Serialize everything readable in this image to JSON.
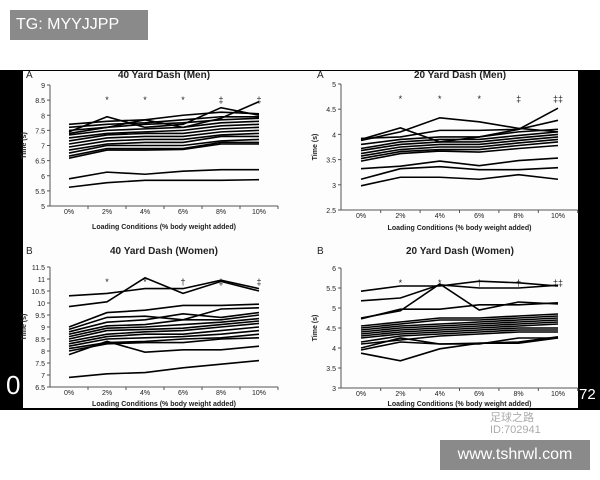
{
  "overlay": {
    "tag": "TG: MYYJJPP",
    "site": "www.tshrwl.com",
    "corner_left": "0",
    "watermark_name": "足球之路",
    "watermark_id": "ID:702941",
    "watermark_tail": "72"
  },
  "chart_data": [
    {
      "type": "line",
      "panel": "A",
      "title": "40 Yard Dash (Men)",
      "xlabel": "Loading Conditions (% body weight added)",
      "ylabel": "Time (s)",
      "categories": [
        "0%",
        "2%",
        "4%",
        "6%",
        "8%",
        "10%"
      ],
      "ylim": [
        5,
        9
      ],
      "yticks": [
        5,
        5.5,
        6,
        6.5,
        7,
        7.5,
        8,
        8.5,
        9
      ],
      "annotations": [
        "",
        "*",
        "*",
        "*",
        "‡",
        "‡"
      ],
      "series": [
        [
          7.45,
          7.95,
          7.6,
          7.7,
          8.25,
          8.0
        ],
        [
          7.4,
          7.6,
          7.85,
          7.6,
          7.9,
          8.45
        ],
        [
          7.7,
          7.8,
          7.85,
          8.0,
          8.1,
          8.05
        ],
        [
          7.6,
          7.7,
          7.75,
          7.85,
          7.95,
          7.95
        ],
        [
          7.5,
          7.6,
          7.7,
          7.75,
          7.85,
          7.9
        ],
        [
          7.35,
          7.5,
          7.55,
          7.6,
          7.75,
          7.8
        ],
        [
          7.25,
          7.4,
          7.45,
          7.5,
          7.65,
          7.7
        ],
        [
          7.15,
          7.35,
          7.4,
          7.4,
          7.55,
          7.6
        ],
        [
          7.05,
          7.25,
          7.3,
          7.3,
          7.45,
          7.5
        ],
        [
          6.95,
          7.15,
          7.2,
          7.2,
          7.35,
          7.4
        ],
        [
          6.85,
          7.05,
          7.1,
          7.1,
          7.3,
          7.3
        ],
        [
          6.75,
          7.0,
          7.0,
          7.0,
          7.15,
          7.2
        ],
        [
          6.65,
          6.9,
          6.9,
          6.9,
          7.1,
          7.1
        ],
        [
          6.58,
          6.85,
          6.85,
          6.87,
          7.05,
          7.05
        ],
        [
          5.9,
          6.12,
          6.05,
          6.15,
          6.2,
          6.2
        ],
        [
          5.62,
          5.77,
          5.85,
          5.85,
          5.85,
          5.87
        ]
      ]
    },
    {
      "type": "line",
      "panel": "A",
      "title": "20 Yard Dash (Men)",
      "xlabel": "Loading Conditions (% body weight added)",
      "ylabel": "Time (s)",
      "categories": [
        "0%",
        "2%",
        "4%",
        "6%",
        "8%",
        "10%"
      ],
      "ylim": [
        2.5,
        5
      ],
      "yticks": [
        2.5,
        3,
        3.5,
        4,
        4.5,
        5
      ],
      "annotations": [
        "",
        "*",
        "*",
        "*",
        "‡",
        "‡‡"
      ],
      "series": [
        [
          3.9,
          4.13,
          3.85,
          3.95,
          4.1,
          4.52
        ],
        [
          3.88,
          4.05,
          4.33,
          4.25,
          4.12,
          4.05
        ],
        [
          3.92,
          3.95,
          4.08,
          4.08,
          4.1,
          4.28
        ],
        [
          3.8,
          3.9,
          3.95,
          3.95,
          4.05,
          4.1
        ],
        [
          3.72,
          3.85,
          3.9,
          3.9,
          3.98,
          4.05
        ],
        [
          3.68,
          3.8,
          3.85,
          3.85,
          3.93,
          4.0
        ],
        [
          3.62,
          3.75,
          3.8,
          3.8,
          3.88,
          3.95
        ],
        [
          3.57,
          3.7,
          3.75,
          3.75,
          3.83,
          3.9
        ],
        [
          3.52,
          3.66,
          3.7,
          3.7,
          3.78,
          3.85
        ],
        [
          3.47,
          3.62,
          3.67,
          3.65,
          3.72,
          3.78
        ],
        [
          3.32,
          3.37,
          3.47,
          3.38,
          3.48,
          3.53
        ],
        [
          3.11,
          3.32,
          3.36,
          3.3,
          3.3,
          3.34
        ],
        [
          2.98,
          3.15,
          3.15,
          3.11,
          3.2,
          3.11
        ]
      ]
    },
    {
      "type": "line",
      "panel": "B",
      "title": "40 Yard Dash (Women)",
      "xlabel": "Loading Conditions (% body weight added)",
      "ylabel": "Time (s)",
      "categories": [
        "0%",
        "2%",
        "4%",
        "6%",
        "8%",
        "10%"
      ],
      "ylim": [
        6.5,
        11.5
      ],
      "yticks": [
        6.5,
        7,
        7.5,
        8,
        8.5,
        9,
        9.5,
        10,
        10.5,
        11,
        11.5
      ],
      "annotations": [
        "",
        "*",
        "*",
        "†",
        "‡",
        "‡"
      ],
      "series": [
        [
          10.3,
          10.4,
          10.6,
          10.6,
          10.95,
          10.6
        ],
        [
          9.85,
          10.05,
          11.05,
          10.4,
          10.9,
          10.5
        ],
        [
          9.0,
          9.6,
          9.7,
          9.9,
          9.9,
          9.95
        ],
        [
          8.9,
          9.4,
          9.45,
          9.3,
          9.75,
          9.8
        ],
        [
          8.8,
          9.2,
          9.3,
          9.55,
          9.4,
          9.6
        ],
        [
          8.7,
          9.05,
          9.1,
          9.3,
          9.3,
          9.5
        ],
        [
          8.6,
          8.95,
          9.0,
          9.1,
          9.2,
          9.35
        ],
        [
          8.5,
          8.85,
          8.9,
          8.95,
          9.1,
          9.25
        ],
        [
          8.4,
          8.7,
          8.8,
          8.85,
          9.0,
          9.15
        ],
        [
          8.3,
          8.6,
          8.7,
          8.7,
          8.85,
          9.0
        ],
        [
          8.2,
          8.5,
          8.55,
          8.6,
          8.7,
          8.85
        ],
        [
          8.1,
          8.35,
          8.4,
          8.5,
          8.55,
          8.7
        ],
        [
          8.0,
          8.3,
          8.35,
          8.35,
          8.5,
          8.55
        ],
        [
          7.85,
          8.4,
          7.95,
          8.05,
          8.05,
          8.2
        ],
        [
          6.9,
          7.05,
          7.1,
          7.3,
          7.45,
          7.6
        ]
      ]
    },
    {
      "type": "line",
      "panel": "B",
      "title": "20 Yard Dash (Women)",
      "xlabel": "Loading Conditions (% body weight added)",
      "ylabel": "Time (s)",
      "categories": [
        "0%",
        "2%",
        "4%",
        "6%",
        "8%",
        "10%"
      ],
      "ylim": [
        3,
        6
      ],
      "yticks": [
        3,
        3.5,
        4,
        4.5,
        5,
        5.5,
        6
      ],
      "annotations": [
        "",
        "*",
        "*",
        "†",
        "†",
        "‡‡"
      ],
      "series": [
        [
          5.42,
          5.55,
          5.55,
          5.67,
          5.63,
          5.55
        ],
        [
          5.18,
          5.25,
          5.58,
          5.5,
          5.5,
          5.57
        ],
        [
          4.75,
          4.93,
          5.6,
          4.95,
          5.15,
          5.1
        ],
        [
          4.73,
          4.97,
          4.97,
          5.08,
          5.08,
          5.13
        ],
        [
          4.55,
          4.65,
          4.75,
          4.75,
          4.8,
          4.85
        ],
        [
          4.5,
          4.6,
          4.7,
          4.7,
          4.75,
          4.8
        ],
        [
          4.45,
          4.55,
          4.6,
          4.65,
          4.7,
          4.75
        ],
        [
          4.4,
          4.5,
          4.55,
          4.6,
          4.65,
          4.7
        ],
        [
          4.35,
          4.45,
          4.5,
          4.55,
          4.6,
          4.65
        ],
        [
          4.3,
          4.4,
          4.45,
          4.5,
          4.55,
          4.6
        ],
        [
          4.25,
          4.35,
          4.4,
          4.45,
          4.5,
          4.5
        ],
        [
          4.15,
          4.3,
          4.35,
          4.4,
          4.45,
          4.45
        ],
        [
          4.1,
          4.2,
          4.3,
          4.35,
          4.4,
          4.4
        ],
        [
          4.0,
          4.25,
          4.1,
          4.1,
          4.25,
          4.25
        ],
        [
          3.95,
          4.15,
          4.1,
          4.12,
          4.15,
          4.28
        ],
        [
          3.87,
          3.68,
          3.98,
          4.12,
          4.12,
          4.25
        ]
      ]
    }
  ]
}
